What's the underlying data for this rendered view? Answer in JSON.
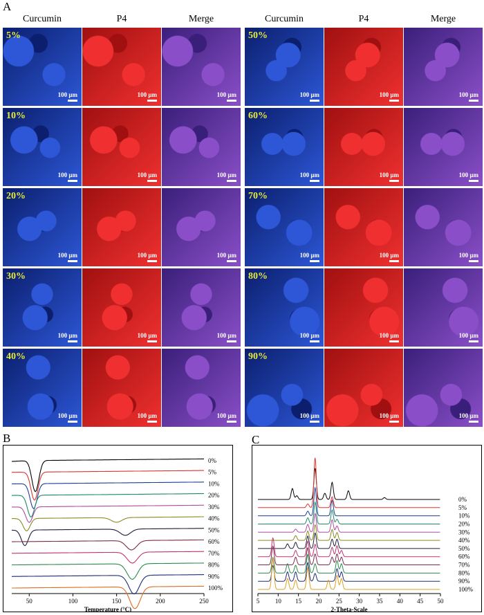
{
  "panel_a": {
    "letter": "A",
    "headers": [
      "Curcumin",
      "P4",
      "Merge"
    ],
    "scale_label": "100 µm",
    "left_rows": [
      "5%",
      "10%",
      "20%",
      "30%",
      "40%"
    ],
    "right_rows": [
      "50%",
      "60%",
      "70%",
      "80%",
      "90%"
    ],
    "colors": {
      "curcumin": "#1e3fb8",
      "p4": "#c81e1e",
      "merge": "#7a3aa8",
      "label": "#e6ea3a"
    }
  },
  "panel_b": {
    "letter": "B"
  },
  "panel_c": {
    "letter": "C"
  },
  "chart_data": [
    {
      "type": "line",
      "panel": "B",
      "xlabel": "Temperature (°C)",
      "ylabel": "",
      "xlim": [
        30,
        250
      ],
      "xticks": [
        50,
        100,
        150,
        200,
        250
      ],
      "series": [
        {
          "name": "0%",
          "color": "#000000",
          "features": [
            {
              "x": 57,
              "depth": 1.0
            }
          ]
        },
        {
          "name": "5%",
          "color": "#e0322c",
          "features": [
            {
              "x": 56,
              "depth": 0.9
            }
          ]
        },
        {
          "name": "10%",
          "color": "#1a3e96",
          "features": [
            {
              "x": 55,
              "depth": 0.8
            }
          ]
        },
        {
          "name": "20%",
          "color": "#1b8a6b",
          "features": [
            {
              "x": 52,
              "depth": 0.7
            }
          ]
        },
        {
          "name": "30%",
          "color": "#b04aa0",
          "features": [
            {
              "x": 50,
              "depth": 0.5
            }
          ]
        },
        {
          "name": "40%",
          "color": "#8a8a20",
          "features": [
            {
              "x": 47,
              "depth": 0.4
            },
            {
              "x": 150,
              "depth": 0.15
            }
          ]
        },
        {
          "name": "50%",
          "color": "#1c1c3a",
          "features": [
            {
              "x": 45,
              "depth": 0.5
            },
            {
              "x": 160,
              "depth": 0.2
            }
          ]
        },
        {
          "name": "60%",
          "color": "#7a2a4a",
          "features": [
            {
              "x": 167,
              "depth": 0.3
            }
          ]
        },
        {
          "name": "70%",
          "color": "#c43070",
          "features": [
            {
              "x": 168,
              "depth": 0.35
            }
          ]
        },
        {
          "name": "80%",
          "color": "#2a8a4a",
          "features": [
            {
              "x": 168,
              "depth": 0.5
            }
          ]
        },
        {
          "name": "90%",
          "color": "#1a2a7a",
          "features": [
            {
              "x": 170,
              "depth": 0.6
            }
          ]
        },
        {
          "name": "100%",
          "color": "#e06a20",
          "features": [
            {
              "x": 171,
              "depth": 0.7
            }
          ]
        }
      ]
    },
    {
      "type": "line",
      "panel": "C",
      "xlabel": "2-Theta-Scale",
      "ylabel": "",
      "xlim": [
        5,
        50
      ],
      "xticks": [
        5,
        10,
        15,
        20,
        25,
        30,
        35,
        40,
        45,
        50
      ],
      "series": [
        {
          "name": "0%",
          "color": "#000000",
          "peaks": [
            [
              13.5,
              0.35
            ],
            [
              14.6,
              0.12
            ],
            [
              19.1,
              1.0
            ],
            [
              21.5,
              0.2
            ],
            [
              23.3,
              0.55
            ],
            [
              27.3,
              0.28
            ],
            [
              36.2,
              0.06
            ]
          ]
        },
        {
          "name": "5%",
          "color": "#e0322c",
          "peaks": [
            [
              19.1,
              1.6
            ],
            [
              23.3,
              0.35
            ],
            [
              17.3,
              0.12
            ]
          ]
        },
        {
          "name": "10%",
          "color": "#1a3e96",
          "peaks": [
            [
              19.1,
              0.9
            ],
            [
              23.3,
              0.5
            ],
            [
              17.3,
              0.15
            ]
          ]
        },
        {
          "name": "20%",
          "color": "#1b8a6b",
          "peaks": [
            [
              19.1,
              0.7
            ],
            [
              23.3,
              0.45
            ],
            [
              17.3,
              0.2
            ],
            [
              24.5,
              0.15
            ]
          ]
        },
        {
          "name": "30%",
          "color": "#b04aa0",
          "peaks": [
            [
              19.1,
              0.6
            ],
            [
              23.3,
              0.4
            ],
            [
              17.3,
              0.25
            ],
            [
              24.5,
              0.2
            ],
            [
              14.3,
              0.1
            ]
          ]
        },
        {
          "name": "40%",
          "color": "#8a8a20",
          "peaks": [
            [
              19.1,
              0.5
            ],
            [
              23.3,
              0.35
            ],
            [
              17.3,
              0.3
            ],
            [
              24.5,
              0.25
            ],
            [
              14.3,
              0.15
            ]
          ]
        },
        {
          "name": "50%",
          "color": "#1c1c3a",
          "peaks": [
            [
              19.1,
              0.5
            ],
            [
              17.3,
              0.4
            ],
            [
              23.3,
              0.3
            ],
            [
              24.5,
              0.3
            ],
            [
              14.3,
              0.2
            ],
            [
              12.3,
              0.15
            ]
          ]
        },
        {
          "name": "60%",
          "color": "#c43070",
          "peaks": [
            [
              8.7,
              0.6
            ],
            [
              17.3,
              0.5
            ],
            [
              19.1,
              0.4
            ],
            [
              23.3,
              0.3
            ],
            [
              24.5,
              0.35
            ],
            [
              14.3,
              0.2
            ],
            [
              25.6,
              0.2
            ]
          ]
        },
        {
          "name": "70%",
          "color": "#7a2a4a",
          "peaks": [
            [
              8.7,
              0.6
            ],
            [
              17.3,
              0.55
            ],
            [
              19.1,
              0.35
            ],
            [
              23.3,
              0.25
            ],
            [
              24.5,
              0.35
            ],
            [
              14.3,
              0.25
            ],
            [
              25.6,
              0.25
            ]
          ]
        },
        {
          "name": "80%",
          "color": "#2a8a4a",
          "peaks": [
            [
              8.7,
              0.5
            ],
            [
              12.3,
              0.3
            ],
            [
              17.3,
              0.6
            ],
            [
              19.1,
              0.3
            ],
            [
              24.5,
              0.4
            ],
            [
              14.3,
              0.25
            ],
            [
              25.6,
              0.3
            ]
          ]
        },
        {
          "name": "90%",
          "color": "#1a2a7a",
          "peaks": [
            [
              8.7,
              0.5
            ],
            [
              12.3,
              0.3
            ],
            [
              17.3,
              0.6
            ],
            [
              19.1,
              0.25
            ],
            [
              24.5,
              0.4
            ],
            [
              14.3,
              0.3
            ],
            [
              25.6,
              0.3
            ]
          ]
        },
        {
          "name": "100%",
          "color": "#e0a020",
          "peaks": [
            [
              8.7,
              1.0
            ],
            [
              12.3,
              0.35
            ],
            [
              17.3,
              0.7
            ],
            [
              14.3,
              0.3
            ],
            [
              24.5,
              0.45
            ],
            [
              25.6,
              0.35
            ],
            [
              22.4,
              0.3
            ]
          ]
        }
      ]
    }
  ]
}
